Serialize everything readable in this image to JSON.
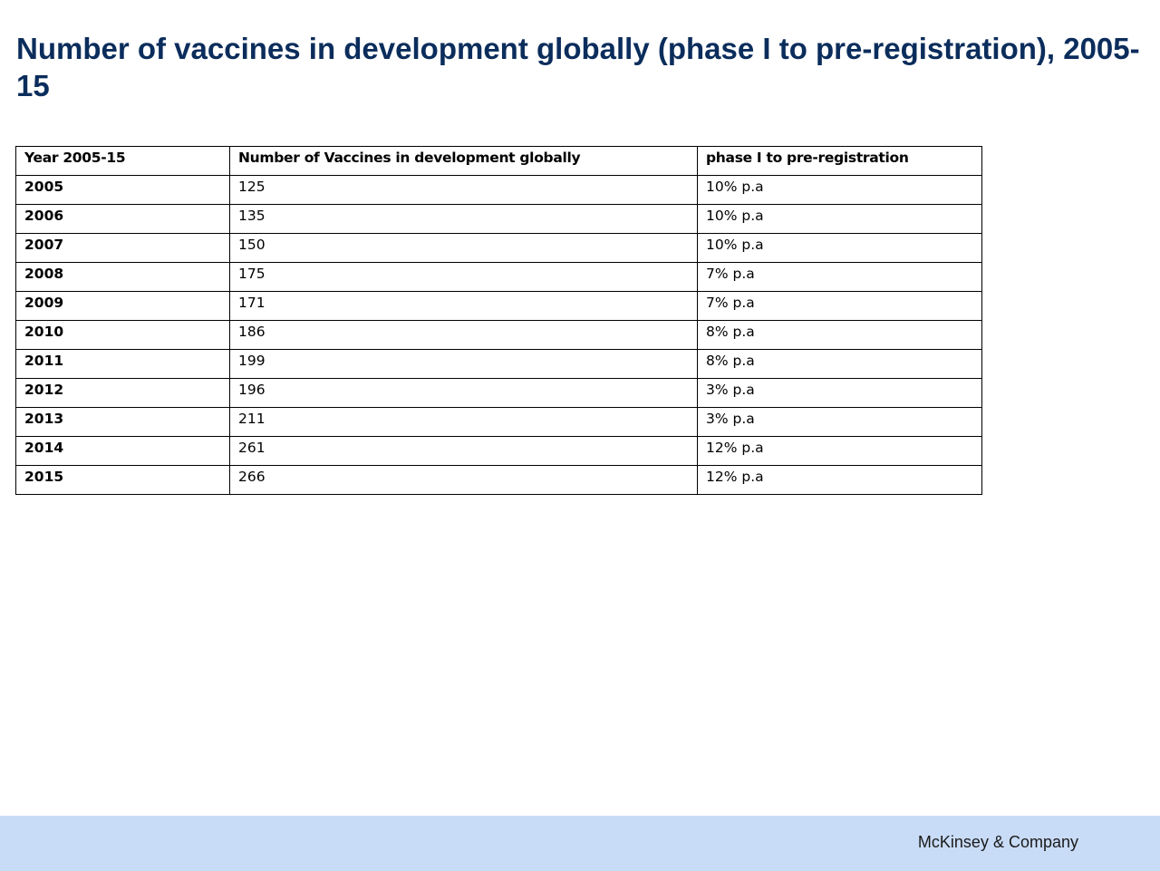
{
  "chart_data": {
    "type": "table",
    "title": "Number of vaccines in development globally (phase I to pre-registration), 2005-15",
    "columns": [
      "Year 2005-15",
      "Number of Vaccines in development globally",
      "phase I to pre-registration"
    ],
    "rows": [
      {
        "year": "2005",
        "count": "125",
        "growth": "10% p.a"
      },
      {
        "year": "2006",
        "count": "135",
        "growth": "10% p.a"
      },
      {
        "year": "2007",
        "count": "150",
        "growth": "10% p.a"
      },
      {
        "year": "2008",
        "count": "175",
        "growth": "7% p.a"
      },
      {
        "year": "2009",
        "count": "171",
        "growth": "7% p.a"
      },
      {
        "year": "2010",
        "count": "186",
        "growth": "8% p.a"
      },
      {
        "year": "2011",
        "count": "199",
        "growth": "8% p.a"
      },
      {
        "year": "2012",
        "count": "196",
        "growth": "3% p.a"
      },
      {
        "year": "2013",
        "count": "211",
        "growth": "3% p.a"
      },
      {
        "year": "2014",
        "count": "261",
        "growth": "12% p.a"
      },
      {
        "year": "2015",
        "count": "266",
        "growth": "12% p.a"
      }
    ]
  },
  "footer": {
    "brand": "McKinsey & Company"
  },
  "colors": {
    "title": "#0b2d5c",
    "footer_band": "#c9dcf7"
  }
}
